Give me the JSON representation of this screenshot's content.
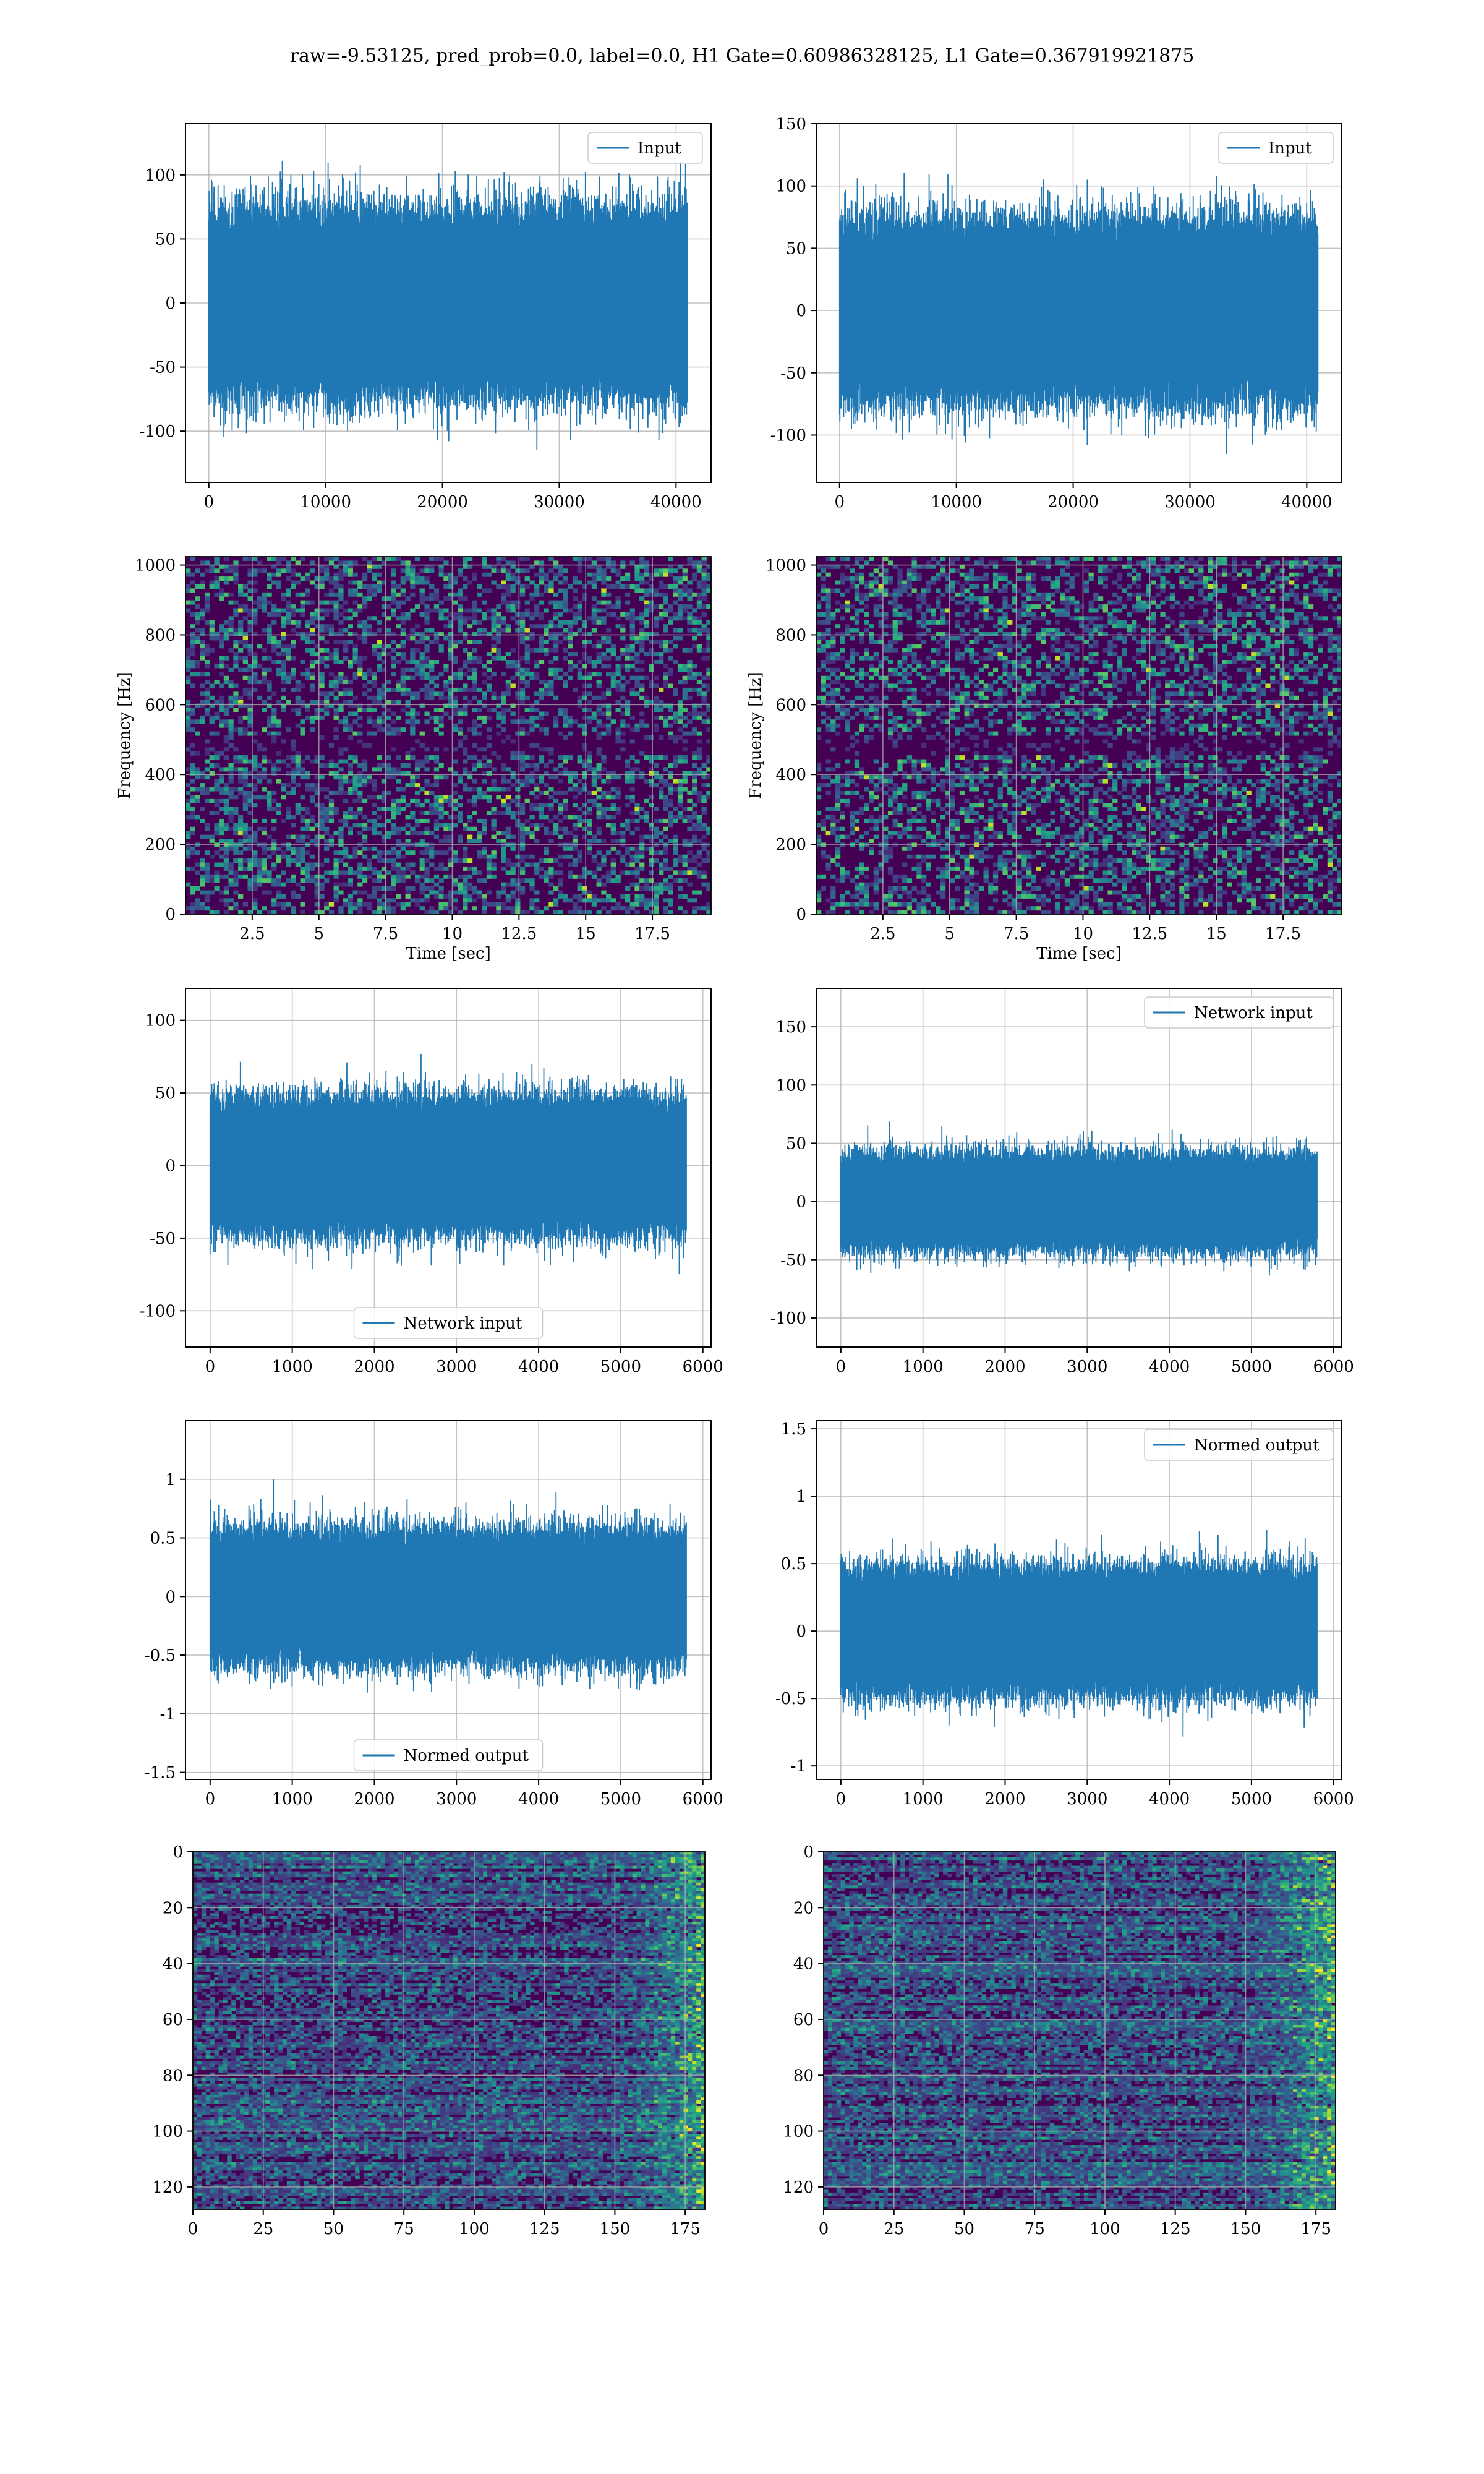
{
  "title": "raw=-9.53125, pred_prob=0.0, label=0.0, H1 Gate=0.60986328125, L1 Gate=0.367919921875",
  "colors": {
    "series": "#1f77b4",
    "viridis_low": "#440154",
    "viridis_mid": "#21918c",
    "viridis_high": "#fde725",
    "grid": "#b0b0b0"
  },
  "chart_data": [
    {
      "type": "line",
      "position": "row1-left",
      "series": [
        {
          "name": "Input",
          "envelope": 70,
          "n_points": 40960
        }
      ],
      "xlim": [
        -2000,
        43000
      ],
      "ylim": [
        -140,
        140
      ],
      "xticks": [
        0,
        10000,
        20000,
        30000,
        40000
      ],
      "yticks": [
        -100,
        -50,
        0,
        50,
        100
      ],
      "legend": "top-right",
      "grid": true,
      "xlabel": "",
      "ylabel": ""
    },
    {
      "type": "line",
      "position": "row1-right",
      "series": [
        {
          "name": "Input",
          "envelope": 70,
          "n_points": 40960
        }
      ],
      "xlim": [
        -2000,
        43000
      ],
      "ylim": [
        -138,
        150
      ],
      "xticks": [
        0,
        10000,
        20000,
        30000,
        40000
      ],
      "yticks": [
        -100,
        -50,
        0,
        50,
        100,
        150
      ],
      "legend": "top-right",
      "grid": true,
      "xlabel": "",
      "ylabel": ""
    },
    {
      "type": "heatmap",
      "position": "row2-left",
      "colormap": "viridis",
      "xlim": [
        0,
        19.7
      ],
      "ylim": [
        0,
        1024
      ],
      "xticks": [
        2.5,
        5.0,
        7.5,
        10.0,
        12.5,
        15.0,
        17.5
      ],
      "yticks": [
        0,
        200,
        400,
        600,
        800,
        1000
      ],
      "xlabel": "Time [sec]",
      "ylabel": "Frequency [Hz]",
      "grid": true
    },
    {
      "type": "heatmap",
      "position": "row2-right",
      "colormap": "viridis",
      "xlim": [
        0,
        19.7
      ],
      "ylim": [
        0,
        1024
      ],
      "xticks": [
        2.5,
        5.0,
        7.5,
        10.0,
        12.5,
        15.0,
        17.5
      ],
      "yticks": [
        0,
        200,
        400,
        600,
        800,
        1000
      ],
      "xlabel": "Time [sec]",
      "ylabel": "Frequency [Hz]",
      "grid": true
    },
    {
      "type": "line",
      "position": "row3-left",
      "series": [
        {
          "name": "Network input",
          "envelope": 45,
          "n_points": 5800
        }
      ],
      "xlim": [
        -300,
        6100
      ],
      "ylim": [
        -125,
        122
      ],
      "xticks": [
        0,
        1000,
        2000,
        3000,
        4000,
        5000,
        6000
      ],
      "yticks": [
        -100,
        -50,
        0,
        50,
        100
      ],
      "legend": "bottom-center",
      "grid": true,
      "xlabel": "",
      "ylabel": ""
    },
    {
      "type": "line",
      "position": "row3-right",
      "series": [
        {
          "name": "Network input",
          "envelope": 40,
          "n_points": 5800
        }
      ],
      "xlim": [
        -300,
        6100
      ],
      "ylim": [
        -125,
        183
      ],
      "xticks": [
        0,
        1000,
        2000,
        3000,
        4000,
        5000,
        6000
      ],
      "yticks": [
        -100,
        -50,
        0,
        50,
        100,
        150
      ],
      "legend": "top-right",
      "grid": true,
      "xlabel": "",
      "ylabel": ""
    },
    {
      "type": "line",
      "position": "row4-left",
      "series": [
        {
          "name": "Normed output",
          "envelope": 0.55,
          "n_points": 5800
        }
      ],
      "xlim": [
        -300,
        6100
      ],
      "ylim": [
        -1.56,
        1.5
      ],
      "xticks": [
        0,
        1000,
        2000,
        3000,
        4000,
        5000,
        6000
      ],
      "yticks": [
        -1.5,
        -1.0,
        -0.5,
        0.0,
        0.5,
        1.0
      ],
      "legend": "bottom-center",
      "grid": true,
      "xlabel": "",
      "ylabel": ""
    },
    {
      "type": "line",
      "position": "row4-right",
      "series": [
        {
          "name": "Normed output",
          "envelope": 0.45,
          "n_points": 5800
        }
      ],
      "xlim": [
        -300,
        6100
      ],
      "ylim": [
        -1.1,
        1.56
      ],
      "xticks": [
        0,
        1000,
        2000,
        3000,
        4000,
        5000,
        6000
      ],
      "yticks": [
        -1.0,
        -0.5,
        0.0,
        0.5,
        1.0,
        1.5
      ],
      "legend": "top-right",
      "grid": true,
      "xlabel": "",
      "ylabel": ""
    },
    {
      "type": "heatmap",
      "position": "row5-left",
      "colormap": "viridis",
      "xlim": [
        0,
        182
      ],
      "ylim": [
        128,
        0
      ],
      "xticks": [
        0,
        25,
        50,
        75,
        100,
        125,
        150,
        175
      ],
      "yticks": [
        0,
        20,
        40,
        60,
        80,
        100,
        120
      ],
      "grid": true,
      "xlabel": "",
      "ylabel": ""
    },
    {
      "type": "heatmap",
      "position": "row5-right",
      "colormap": "viridis",
      "xlim": [
        0,
        182
      ],
      "ylim": [
        128,
        0
      ],
      "xticks": [
        0,
        25,
        50,
        75,
        100,
        125,
        150,
        175
      ],
      "yticks": [
        0,
        20,
        40,
        60,
        80,
        100,
        120
      ],
      "grid": true,
      "xlabel": "",
      "ylabel": ""
    }
  ]
}
